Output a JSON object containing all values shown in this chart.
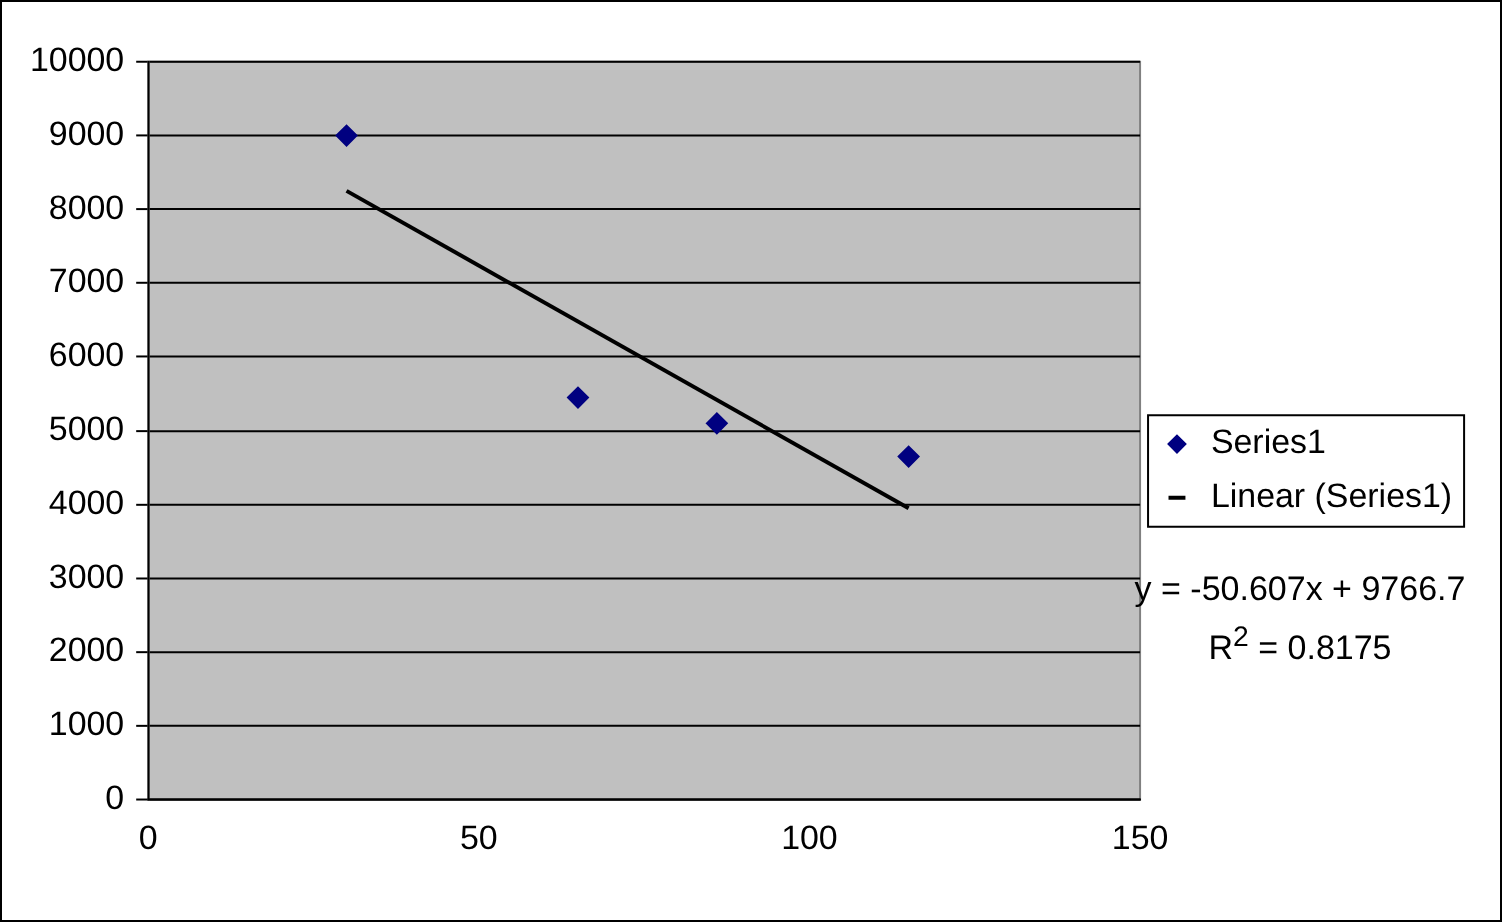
{
  "chart_data": {
    "type": "scatter",
    "xlim": [
      0,
      150
    ],
    "xticks": [
      0,
      50,
      100,
      150
    ],
    "ylim": [
      0,
      10000
    ],
    "yticks": [
      0,
      1000,
      2000,
      3000,
      4000,
      5000,
      6000,
      7000,
      8000,
      9000,
      10000
    ],
    "grid": "y",
    "legend": "right",
    "marker": "diamond",
    "series": [
      {
        "name": "Series1",
        "type": "scatter",
        "color": "#000080",
        "x": [
          30,
          65,
          86,
          115
        ],
        "values": [
          9000,
          5450,
          5100,
          4650
        ]
      },
      {
        "name": "Linear (Series1)",
        "type": "line",
        "marker": "none",
        "color": "#000000",
        "x": [
          30,
          115
        ],
        "values": [
          8250,
          3950
        ]
      }
    ],
    "annotations": [
      "y = -50.607x + 9766.7",
      "R$^{2}$ = 0.8175"
    ]
  }
}
